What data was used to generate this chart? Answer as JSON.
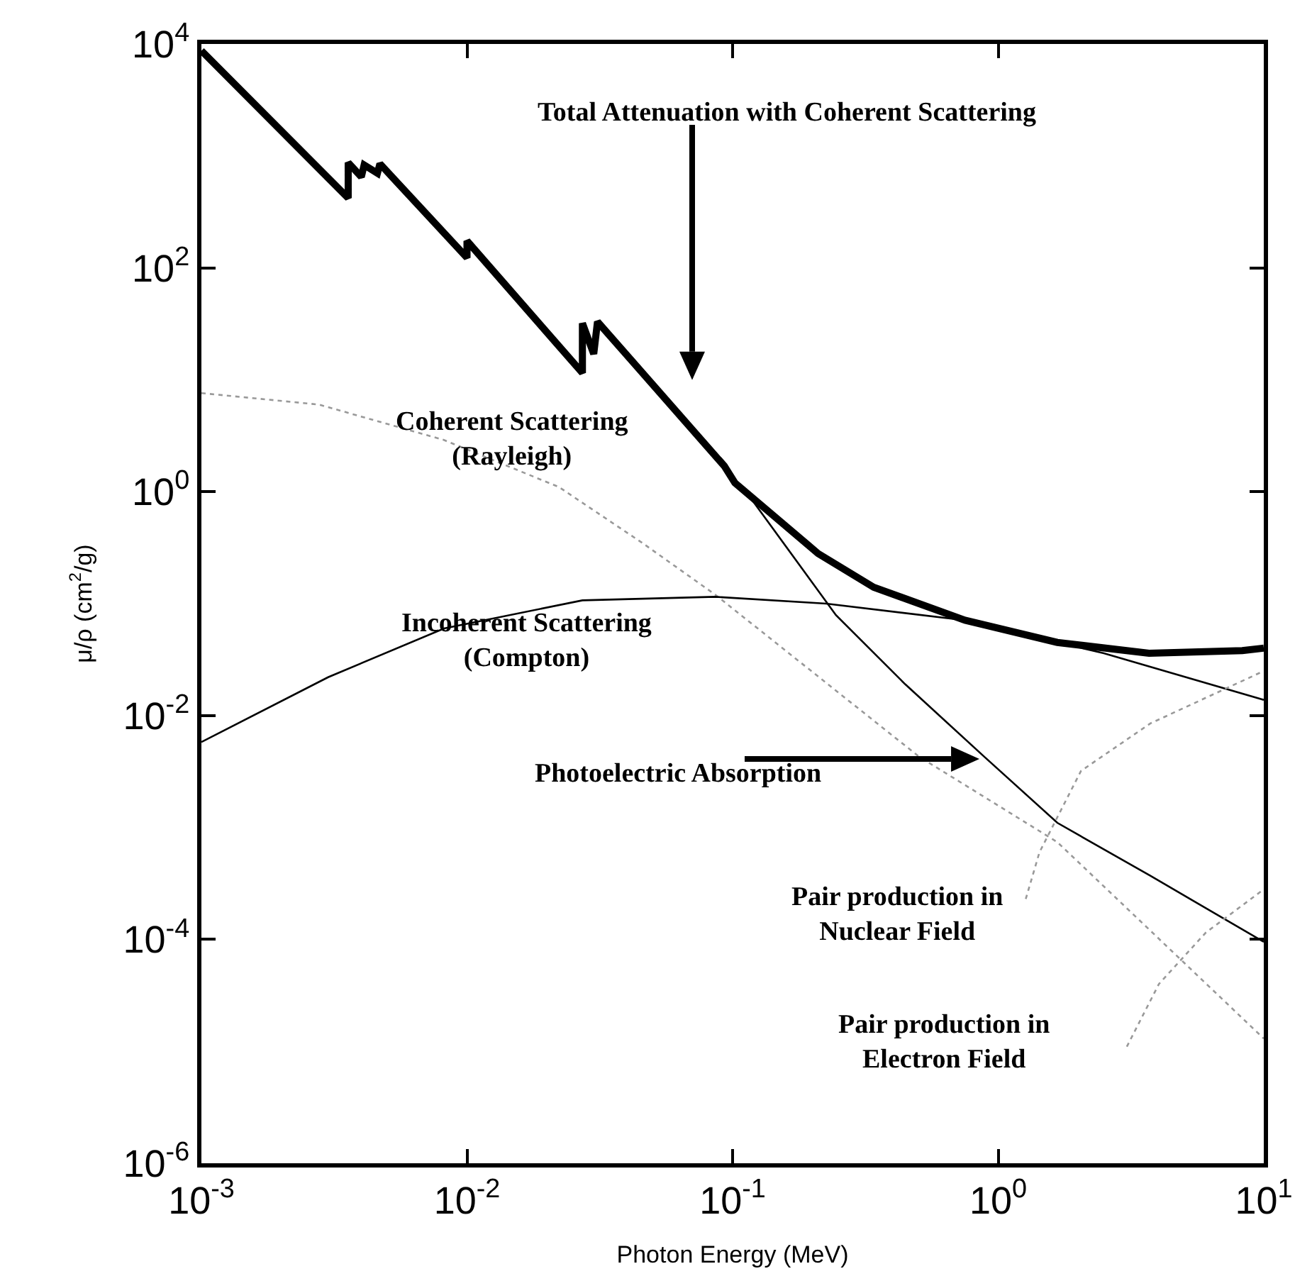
{
  "chart_data": {
    "type": "line",
    "xlabel": "Photon Energy (MeV)",
    "ylabel": "μ/ρ (cm$^{2}$/g)",
    "log": "xy",
    "grid": false,
    "xlim": [
      0.001,
      10
    ],
    "xticks": [
      {
        "value": 0.001,
        "label": "10$^{-3}$"
      },
      {
        "value": 0.01,
        "label": "10$^{-2}$"
      },
      {
        "value": 0.1,
        "label": "10$^{-1}$"
      },
      {
        "value": 1,
        "label": "10$^{0}$"
      },
      {
        "value": 10,
        "label": "10$^{1}$"
      }
    ],
    "ylim": [
      1e-06,
      10000
    ],
    "yticks": [
      {
        "value": 1e-06,
        "label": "10$^{-6}$"
      },
      {
        "value": 0.0001,
        "label": "10$^{-4}$"
      },
      {
        "value": 0.01,
        "label": "10$^{-2}$"
      },
      {
        "value": 1,
        "label": "10$^{0}$"
      },
      {
        "value": 100,
        "label": "10$^{2}$"
      },
      {
        "value": 10000,
        "label": "10$^{4}$"
      }
    ],
    "series": [
      {
        "color": "#000000",
        "line_style": "solid",
        "x": [
          0.001,
          0.00357,
          0.00357,
          0.004,
          0.0041,
          0.0046,
          0.0047,
          0.01,
          0.01,
          0.0272,
          0.0272,
          0.03,
          0.031,
          0.093,
          0.102,
          0.21,
          0.34,
          0.75,
          1.67,
          3.7,
          8.3,
          10
        ],
        "values": [
          8700,
          420,
          870,
          650,
          830,
          700,
          850,
          123,
          174,
          11.5,
          32,
          17,
          33,
          1.7,
          1.2,
          0.28,
          0.14,
          0.071,
          0.045,
          0.036,
          0.038,
          0.04
        ]
      },
      {
        "color": "#999999",
        "line_style": "dotted",
        "x": [
          0.001,
          0.00277,
          0.00818,
          0.0222,
          0.0456,
          0.0861,
          0.503,
          1.67,
          10
        ],
        "values": [
          7.6,
          6.0,
          2.9,
          1.1,
          0.35,
          0.12,
          0.0043,
          0.00074,
          1.3e-05
        ]
      },
      {
        "color": "#000000",
        "line_style": "solid",
        "x": [
          0.001,
          0.003,
          0.0082,
          0.0272,
          0.086,
          0.225,
          0.75,
          2.5,
          10
        ],
        "values": [
          0.0058,
          0.022,
          0.06,
          0.107,
          0.115,
          0.1,
          0.071,
          0.036,
          0.0138
        ]
      },
      {
        "color": "#000000",
        "line_style": "solid",
        "x": [
          0.093,
          0.119,
          0.245,
          0.447,
          0.885,
          1.67,
          3.74,
          10
        ],
        "values": [
          1.6,
          0.83,
          0.079,
          0.019,
          0.0043,
          0.0011,
          0.00037,
          9.5e-05
        ]
      },
      {
        "color": "#999999",
        "line_style": "dotted",
        "x": [
          1.27,
          1.43,
          2.05,
          3.74,
          10
        ],
        "values": [
          0.00023,
          0.0006,
          0.0032,
          0.0085,
          0.025
        ]
      },
      {
        "color": "#999999",
        "line_style": "dotted",
        "x": [
          3.05,
          4.03,
          6.05,
          10
        ],
        "values": [
          1.1e-05,
          4e-05,
          0.000115,
          0.00028
        ]
      }
    ],
    "annotations": [
      "Total Attenuation with Coherent Scattering",
      "Coherent Scattering\n(Rayleigh)",
      "Incoherent Scattering\n(Compton)",
      "Photoelectric Absorption",
      "Pair production in\nNuclear Field",
      "Pair production in\nElectron Field"
    ]
  }
}
